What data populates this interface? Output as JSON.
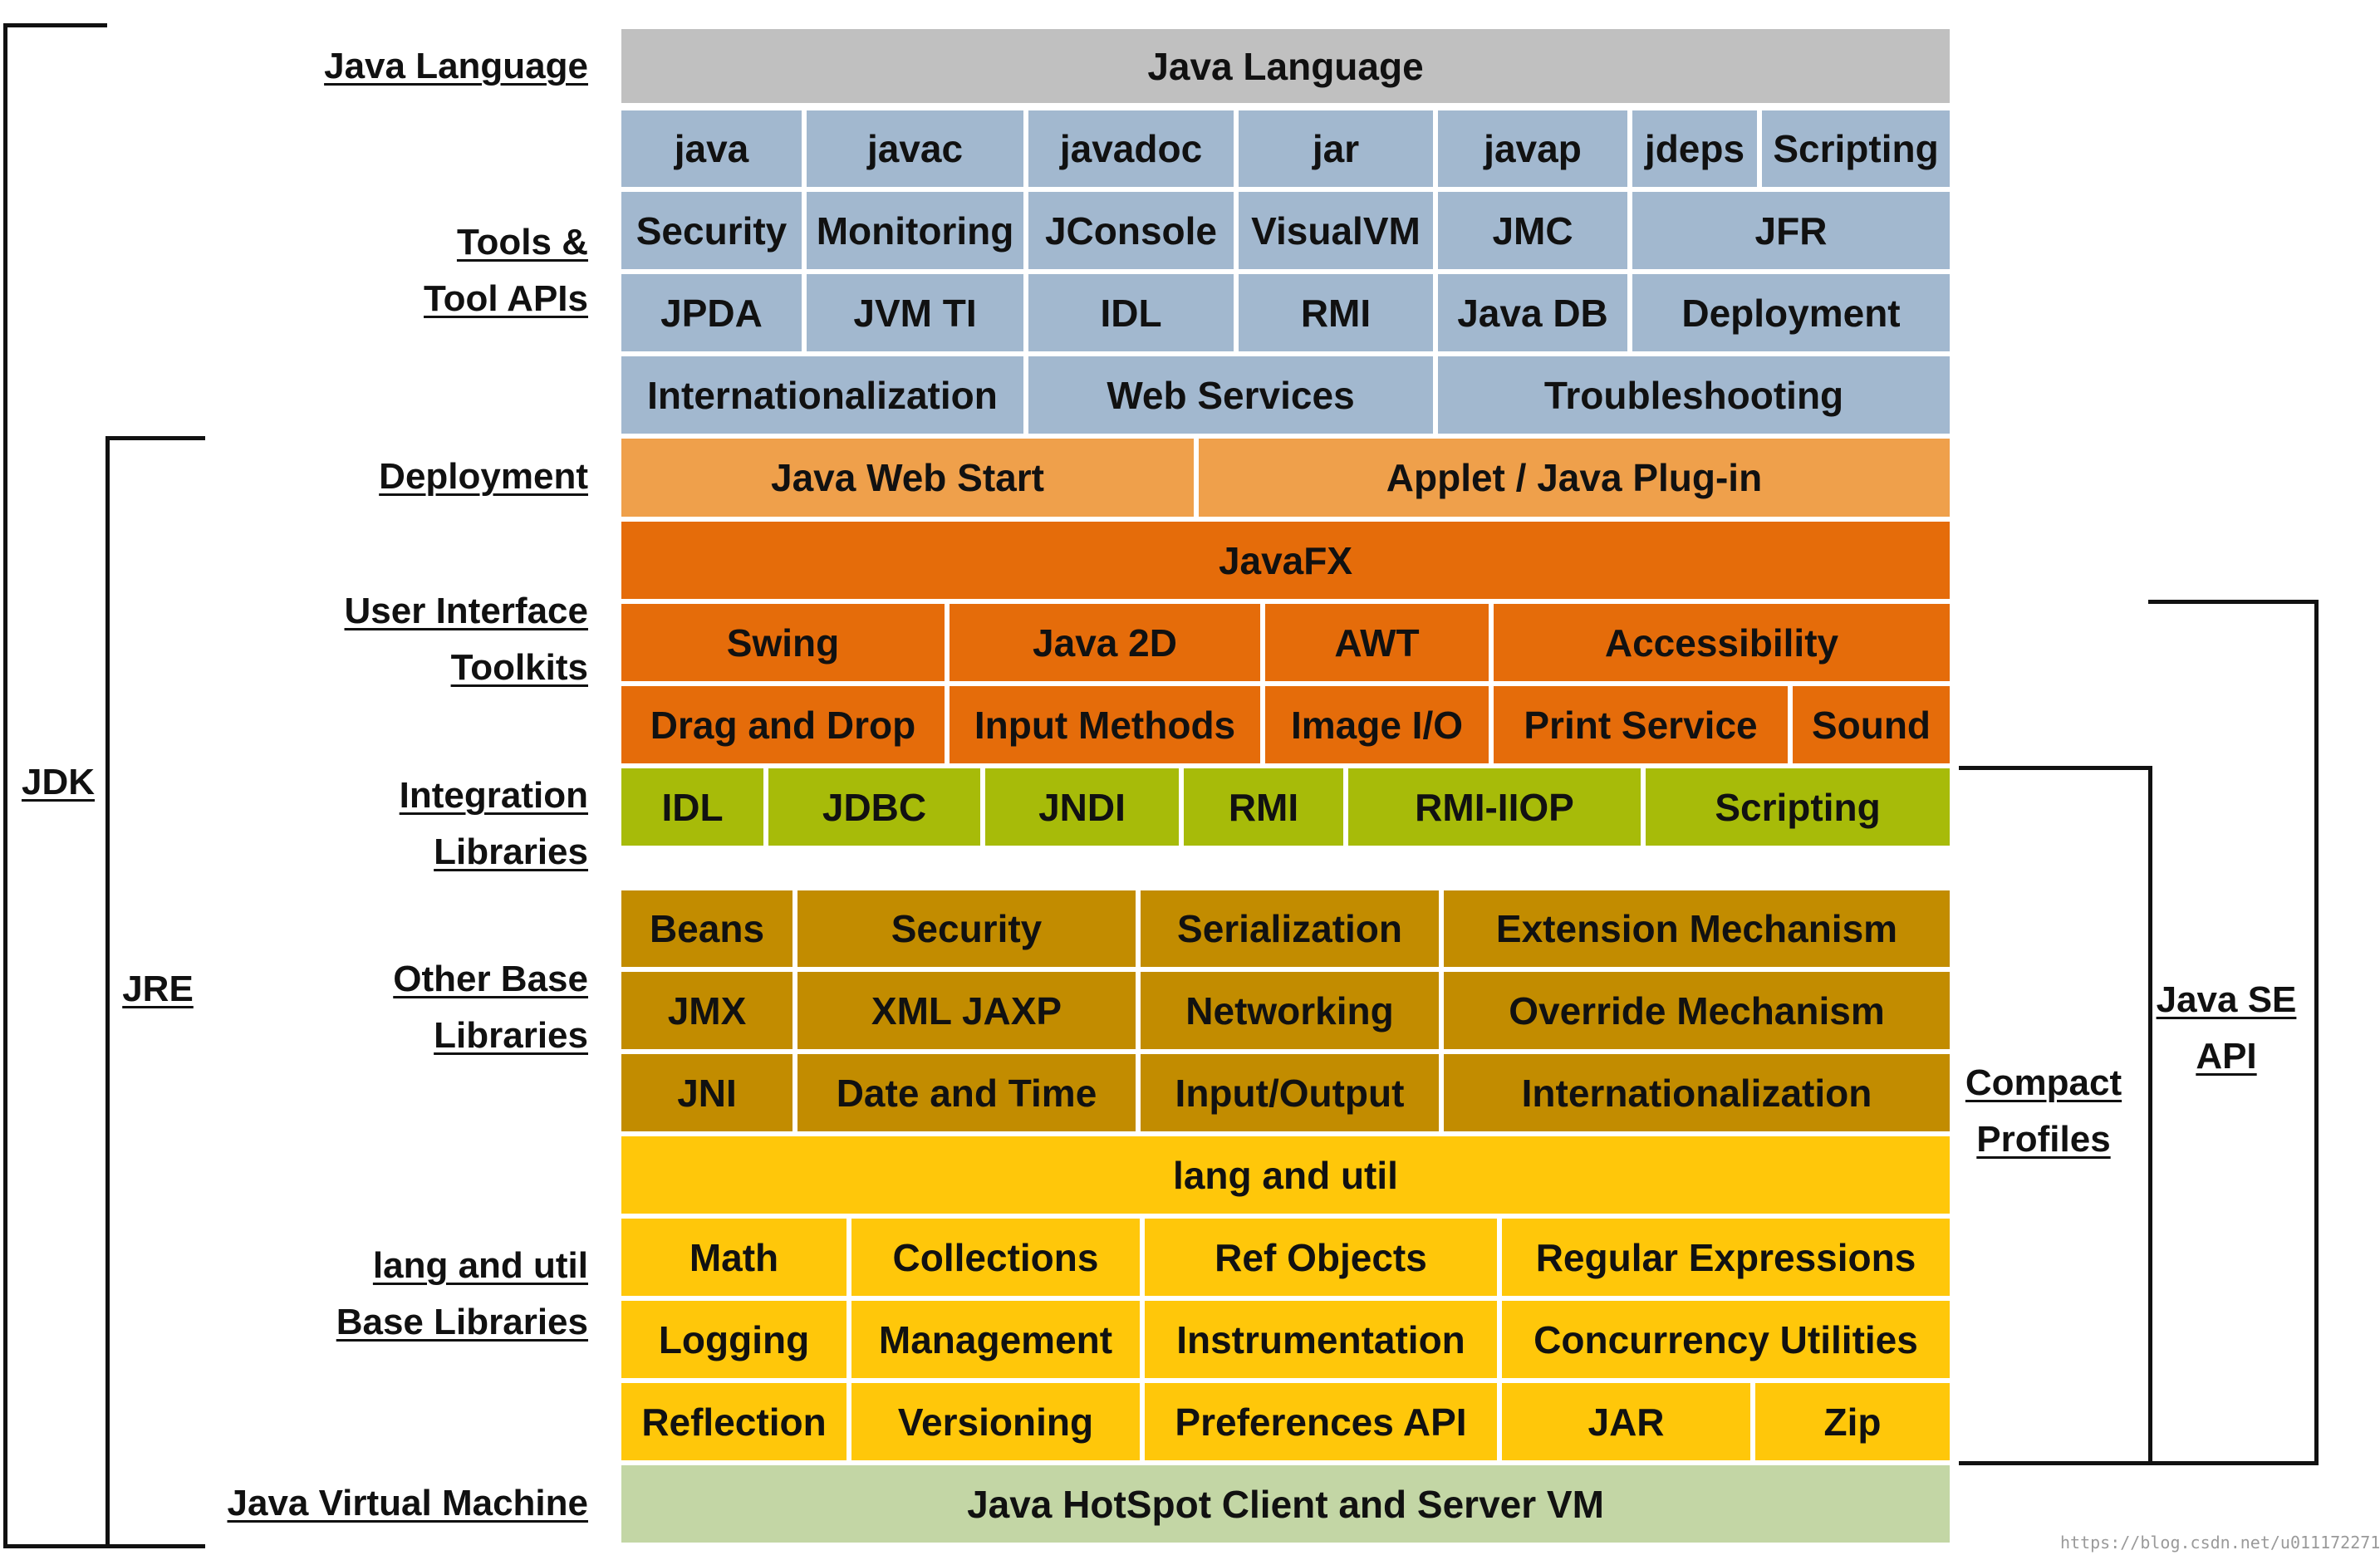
{
  "colors": {
    "java_language": "#c0c0c0",
    "tools": "#a2b8cf",
    "deployment": "#efa04b",
    "user_interface": "#e56c0a",
    "integration": "#a7bb09",
    "other_base": "#c28c00",
    "lang_util": "#ffc70a",
    "jvm": "#c3d6a5",
    "bracket_line": "#111111"
  },
  "layer_labels": {
    "java_language": [
      "Java Language"
    ],
    "tools": [
      "Tools &",
      "Tool APIs"
    ],
    "deployment": [
      "Deployment"
    ],
    "user_interface": [
      "User Interface",
      "Toolkits"
    ],
    "integration": [
      "Integration",
      "Libraries"
    ],
    "other_base": [
      "Other Base",
      "Libraries"
    ],
    "lang_util": [
      "lang and util",
      "Base Libraries"
    ],
    "jvm": [
      "Java Virtual Machine"
    ]
  },
  "groups": {
    "jdk": [
      "JDK"
    ],
    "jre": [
      "JRE"
    ],
    "compact_profiles": [
      "Compact",
      "Profiles"
    ],
    "java_se_api": [
      "Java SE",
      "API"
    ]
  },
  "rows": {
    "java_language": [
      "Java Language"
    ],
    "tools_1": [
      "java",
      "javac",
      "javadoc",
      "jar",
      "javap",
      "jdeps",
      "Scripting"
    ],
    "tools_2": [
      "Security",
      "Monitoring",
      "JConsole",
      "VisualVM",
      "JMC",
      "JFR"
    ],
    "tools_3": [
      "JPDA",
      "JVM TI",
      "IDL",
      "RMI",
      "Java DB",
      "Deployment"
    ],
    "tools_4": [
      "Internationalization",
      "Web Services",
      "Troubleshooting"
    ],
    "deployment": [
      "Java Web Start",
      "Applet / Java Plug-in"
    ],
    "ui_1": [
      "JavaFX"
    ],
    "ui_2": [
      "Swing",
      "Java 2D",
      "AWT",
      "Accessibility"
    ],
    "ui_3": [
      "Drag and Drop",
      "Input Methods",
      "Image I/O",
      "Print Service",
      "Sound"
    ],
    "integration": [
      "IDL",
      "JDBC",
      "JNDI",
      "RMI",
      "RMI-IIOP",
      "Scripting"
    ],
    "other_1": [
      "Beans",
      "Security",
      "Serialization",
      "Extension Mechanism"
    ],
    "other_2": [
      "JMX",
      "XML JAXP",
      "Networking",
      "Override Mechanism"
    ],
    "other_3": [
      "JNI",
      "Date and Time",
      "Input/Output",
      "Internationalization"
    ],
    "lang_1": [
      "lang and util"
    ],
    "lang_2": [
      "Math",
      "Collections",
      "Ref Objects",
      "Regular Expressions"
    ],
    "lang_3": [
      "Logging",
      "Management",
      "Instrumentation",
      "Concurrency Utilities"
    ],
    "lang_4": [
      "Reflection",
      "Versioning",
      "Preferences API",
      "JAR",
      "Zip"
    ],
    "jvm": [
      "Java HotSpot Client and Server VM"
    ]
  },
  "watermark": "https://blog.csdn.net/u011172271"
}
